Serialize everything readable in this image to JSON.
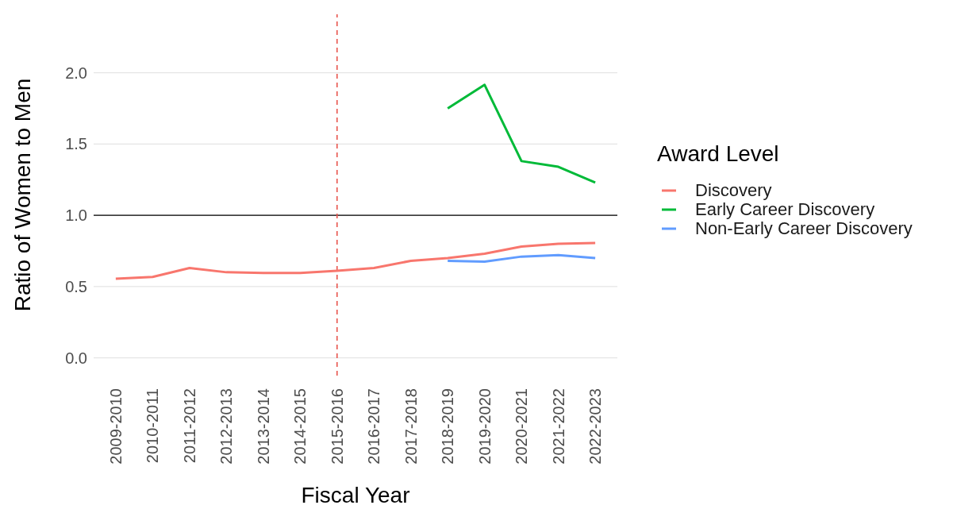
{
  "chart_data": {
    "type": "line",
    "xlabel": "Fiscal Year",
    "ylabel": "Ratio of Women to Men",
    "legend_title": "Award Level",
    "categories": [
      "2009-2010",
      "2010-2011",
      "2011-2012",
      "2012-2013",
      "2013-2014",
      "2014-2015",
      "2015-2016",
      "2016-2017",
      "2017-2018",
      "2018-2019",
      "2019-2020",
      "2020-2021",
      "2021-2022",
      "2022-2023"
    ],
    "series": [
      {
        "name": "Discovery",
        "color": "#f8766d",
        "values": [
          0.555,
          0.567,
          0.63,
          0.6,
          0.595,
          0.595,
          0.61,
          0.63,
          0.68,
          0.7,
          0.73,
          0.78,
          0.8,
          0.805
        ]
      },
      {
        "name": "Early Career Discovery",
        "color": "#00ba38",
        "values": [
          null,
          null,
          null,
          null,
          null,
          null,
          null,
          null,
          null,
          1.75,
          1.915,
          1.38,
          1.34,
          1.23
        ]
      },
      {
        "name": "Non-Early Career Discovery",
        "color": "#619cff",
        "values": [
          null,
          null,
          null,
          null,
          null,
          null,
          null,
          null,
          null,
          0.68,
          0.675,
          0.71,
          0.72,
          0.7
        ]
      }
    ],
    "ylim": [
      -0.125,
      2.41
    ],
    "yticks": [
      {
        "value": 0,
        "label": "0.0"
      },
      {
        "value": 0.5,
        "label": "0.5"
      },
      {
        "value": 1,
        "label": "1.0"
      },
      {
        "value": 1.5,
        "label": "1.5"
      },
      {
        "value": 2,
        "label": "2.0"
      }
    ],
    "ref_lines": [
      {
        "axis": "y",
        "value": 1,
        "color": "#000000",
        "line_style": "solid"
      },
      {
        "axis": "x",
        "value": "2015-2016",
        "color": "#e8554e",
        "line_style": "dashed"
      }
    ],
    "grid": "y",
    "legend": "right",
    "marker": "none",
    "line_style": "solid"
  }
}
